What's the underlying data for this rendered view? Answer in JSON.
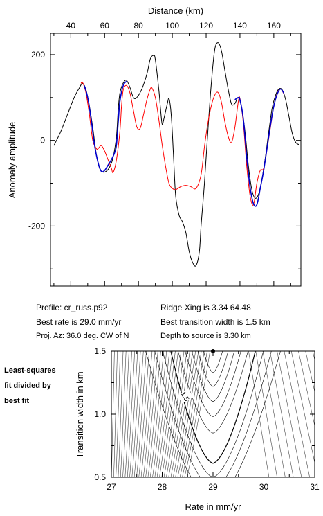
{
  "chart_data": [
    {
      "type": "line",
      "xlabel": "Distance (km)",
      "ylabel": "Anomaly amplitude",
      "xlim": [
        28,
        176
      ],
      "ylim": [
        -340,
        250
      ],
      "x_ticks": [
        40,
        60,
        80,
        100,
        120,
        140,
        160
      ],
      "y_ticks": [
        200,
        0,
        -200
      ],
      "x_axis_position": "top",
      "grid": false,
      "series": [
        {
          "color": "#000000",
          "points": [
            [
              30,
              -12
            ],
            [
              34,
              20
            ],
            [
              38,
              60
            ],
            [
              42,
              100
            ],
            [
              45,
              122
            ],
            [
              47,
              133
            ],
            [
              49,
              118
            ],
            [
              51,
              80
            ],
            [
              53,
              30
            ],
            [
              55,
              -30
            ],
            [
              57,
              -65
            ],
            [
              59,
              -74
            ],
            [
              61,
              -72
            ],
            [
              63,
              -62
            ],
            [
              65,
              -40
            ],
            [
              67,
              10
            ],
            [
              68,
              70
            ],
            [
              69,
              110
            ],
            [
              71,
              134
            ],
            [
              73,
              140
            ],
            [
              75,
              123
            ],
            [
              77,
              100
            ],
            [
              79,
              100
            ],
            [
              82,
              120
            ],
            [
              85,
              155
            ],
            [
              87,
              190
            ],
            [
              89,
              198
            ],
            [
              90,
              188
            ],
            [
              92,
              120
            ],
            [
              93,
              75
            ],
            [
              94,
              38
            ],
            [
              95,
              50
            ],
            [
              97,
              85
            ],
            [
              98,
              98
            ],
            [
              99,
              75
            ],
            [
              100,
              20
            ],
            [
              101,
              -60
            ],
            [
              102,
              -130
            ],
            [
              104,
              -175
            ],
            [
              106,
              -190
            ],
            [
              108,
              -215
            ],
            [
              110,
              -260
            ],
            [
              112,
              -285
            ],
            [
              114,
              -292
            ],
            [
              116,
              -260
            ],
            [
              117,
              -200
            ],
            [
              119,
              -100
            ],
            [
              121,
              20
            ],
            [
              123,
              130
            ],
            [
              125,
              210
            ],
            [
              127,
              228
            ],
            [
              129,
              210
            ],
            [
              131,
              165
            ],
            [
              133,
              120
            ],
            [
              135,
              85
            ],
            [
              137,
              86
            ],
            [
              139,
              100
            ],
            [
              141,
              75
            ],
            [
              143,
              20
            ],
            [
              145,
              -60
            ],
            [
              147,
              -115
            ],
            [
              149,
              -135
            ],
            [
              151,
              -125
            ],
            [
              153,
              -90
            ],
            [
              155,
              -40
            ],
            [
              157,
              20
            ],
            [
              159,
              75
            ],
            [
              161,
              105
            ],
            [
              163,
              120
            ],
            [
              165,
              118
            ],
            [
              167,
              95
            ],
            [
              169,
              55
            ],
            [
              171,
              15
            ],
            [
              173,
              -5
            ],
            [
              175,
              -10
            ]
          ]
        },
        {
          "color": "#ff0000",
          "points": [
            [
              46,
              133
            ],
            [
              47,
              135
            ],
            [
              49,
              110
            ],
            [
              51,
              60
            ],
            [
              53,
              0
            ],
            [
              55,
              -18
            ],
            [
              56,
              -20
            ],
            [
              58,
              -12
            ],
            [
              60,
              -25
            ],
            [
              62,
              -45
            ],
            [
              64,
              -65
            ],
            [
              65,
              -75
            ],
            [
              67,
              -45
            ],
            [
              69,
              20
            ],
            [
              70,
              80
            ],
            [
              71,
              118
            ],
            [
              73,
              128
            ],
            [
              75,
              110
            ],
            [
              77,
              70
            ],
            [
              79,
              32
            ],
            [
              81,
              28
            ],
            [
              83,
              60
            ],
            [
              85,
              95
            ],
            [
              87,
              120
            ],
            [
              88,
              122
            ],
            [
              90,
              100
            ],
            [
              92,
              50
            ],
            [
              94,
              -10
            ],
            [
              96,
              -60
            ],
            [
              98,
              -100
            ],
            [
              100,
              -112
            ],
            [
              102,
              -115
            ],
            [
              105,
              -108
            ],
            [
              108,
              -105
            ],
            [
              111,
              -108
            ],
            [
              114,
              -112
            ],
            [
              117,
              -80
            ],
            [
              119,
              -15
            ],
            [
              121,
              40
            ],
            [
              123,
              80
            ],
            [
              125,
              105
            ],
            [
              127,
              112
            ],
            [
              129,
              90
            ],
            [
              131,
              45
            ],
            [
              133,
              10
            ],
            [
              135,
              -5
            ],
            [
              137,
              30
            ],
            [
              139,
              90
            ],
            [
              140,
              98
            ],
            [
              142,
              40
            ],
            [
              144,
              -60
            ],
            [
              146,
              -130
            ],
            [
              148,
              -150
            ],
            [
              150,
              -100
            ],
            [
              152,
              -70
            ],
            [
              154,
              -65
            ],
            [
              156,
              -20
            ],
            [
              158,
              30
            ],
            [
              160,
              80
            ],
            [
              162,
              110
            ],
            [
              164,
              120
            ],
            [
              166,
              108
            ]
          ]
        },
        {
          "color": "#0000cc",
          "points": [
            [
              48,
              128
            ],
            [
              50,
              100
            ],
            [
              52,
              50
            ],
            [
              54,
              -10
            ],
            [
              56,
              -50
            ],
            [
              58,
              -72
            ],
            [
              60,
              -70
            ],
            [
              62,
              -58
            ],
            [
              64,
              -45
            ],
            [
              66,
              -28
            ],
            [
              67,
              -10
            ],
            [
              68,
              40
            ],
            [
              69,
              90
            ],
            [
              71,
              128
            ],
            [
              73,
              138
            ],
            [
              137,
              95
            ],
            [
              139,
              100
            ],
            [
              140,
              95
            ],
            [
              142,
              50
            ],
            [
              144,
              -40
            ],
            [
              146,
              -110
            ],
            [
              148,
              -148
            ],
            [
              150,
              -150
            ],
            [
              152,
              -112
            ],
            [
              154,
              -70
            ],
            [
              156,
              -18
            ],
            [
              158,
              35
            ],
            [
              160,
              80
            ],
            [
              162,
              108
            ],
            [
              164,
              120
            ],
            [
              166,
              110
            ]
          ],
          "breaks_after_x": [
            73
          ]
        }
      ]
    },
    {
      "type": "contour",
      "xlabel": "Rate in mm/yr",
      "ylabel": "Transition width in km",
      "xlim": [
        27,
        31
      ],
      "ylim": [
        0.5,
        1.5
      ],
      "x_ticks": [
        27,
        28,
        29,
        30,
        31
      ],
      "y_ticks": [
        0.5,
        1.0,
        1.5
      ],
      "minimum_point": {
        "x": 29.0,
        "y": 1.5
      },
      "contour_label": "1.5"
    }
  ],
  "plot1": {
    "title": "Distance (km)",
    "ylabel": "Anomaly amplitude",
    "x_tick_labels": [
      "40",
      "60",
      "80",
      "100",
      "120",
      "140",
      "160"
    ],
    "y_tick_labels": [
      "200",
      "0",
      "-200"
    ]
  },
  "info": {
    "profile": "Profile: cr_russ.p92",
    "best_rate": "Best rate is 29.0 mm/yr",
    "proj_az": "Proj. Az: 36.0 deg. CW of N",
    "ridge_xing": "Ridge Xing is 3.34 64.48",
    "best_width": "Best transition width is 1.5 km",
    "depth": "Depth to source is    3.30 km"
  },
  "note": {
    "line1": "Least-squares",
    "line2": "fit divided by",
    "line3": "best fit"
  },
  "plot2": {
    "xlabel": "Rate in mm/yr",
    "ylabel": "Transition width in km",
    "x_tick_labels": [
      "27",
      "28",
      "29",
      "30",
      "31"
    ],
    "y_tick_labels": [
      "1.5",
      "1.0",
      "0.5"
    ],
    "contour_label": "1.5"
  }
}
